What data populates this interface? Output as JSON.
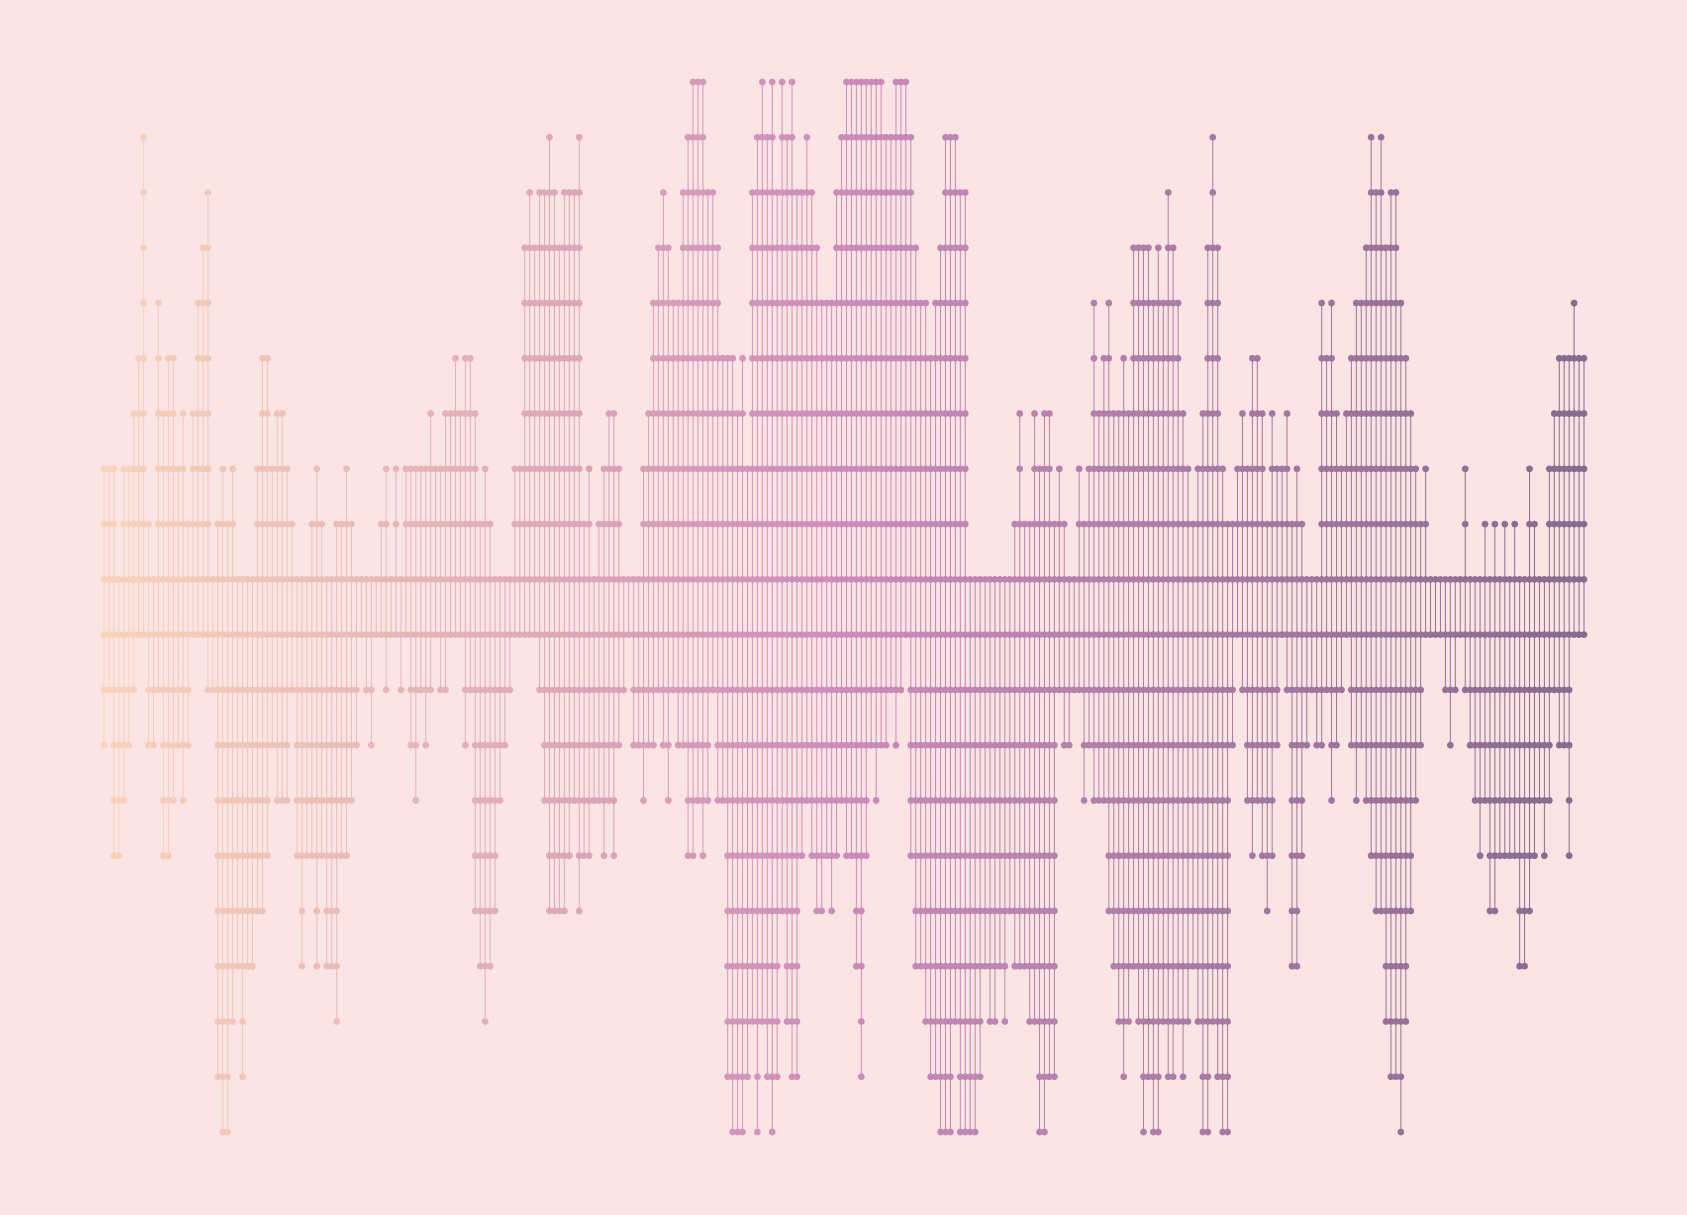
{
  "artwork": {
    "name": "vertical-dot-stripe-pattern",
    "columns": 300,
    "rows": 20,
    "background_color": "#fbe4e4",
    "gradient_colors": [
      "#f8d3b9",
      "#e2b0b7",
      "#cd8bbb",
      "#a77aa3",
      "#8a6a8f"
    ],
    "generator_seed": 7
  }
}
